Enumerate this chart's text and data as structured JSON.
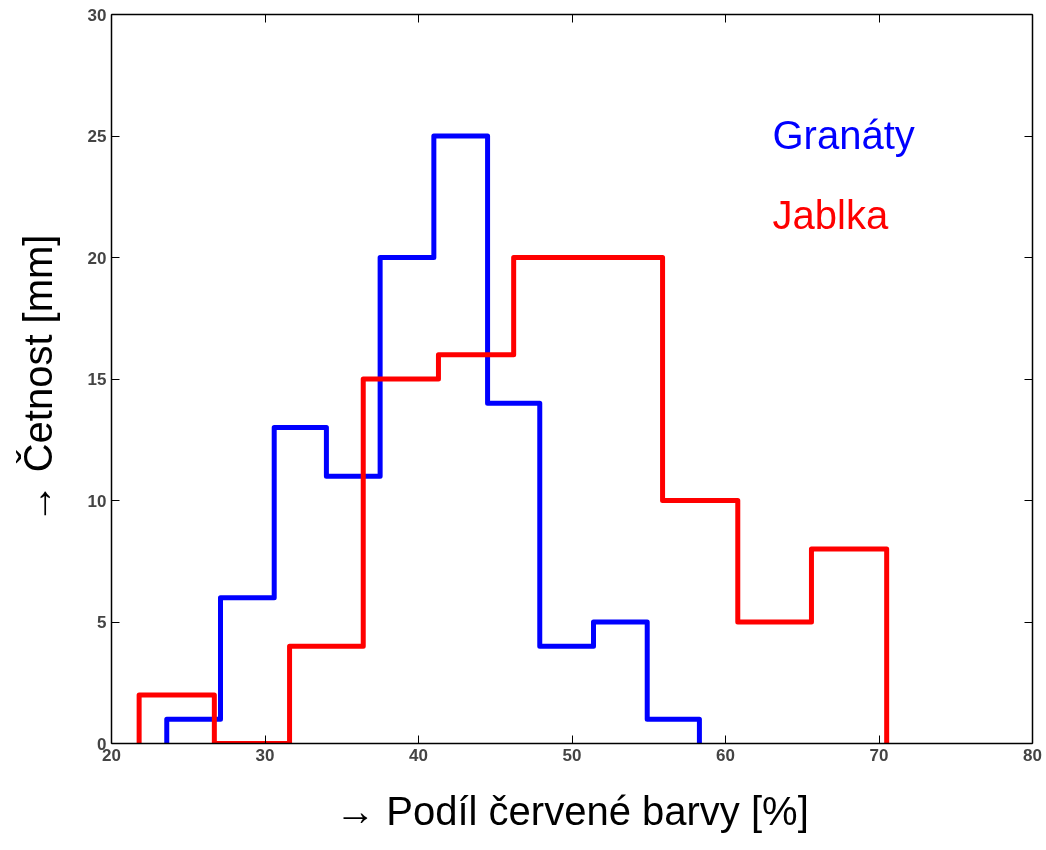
{
  "chart_data": {
    "type": "step",
    "xlabel": "→ Podíl červené barvy [%]",
    "ylabel": "→ Četnost [mm]",
    "series": [
      {
        "name": "Granáty",
        "color": "#0000ff",
        "x": [
          23.6,
          23.6,
          27.1,
          30.6,
          34.0,
          37.5,
          41.0,
          44.5,
          47.9,
          51.4,
          54.9,
          58.3
        ],
        "values": [
          0,
          1,
          6,
          13,
          11,
          20,
          25,
          14,
          4,
          5,
          1,
          0
        ]
      },
      {
        "name": "Jablka",
        "color": "#ff0000",
        "x": [
          21.8,
          21.8,
          26.7,
          31.6,
          36.4,
          41.3,
          46.2,
          51.0,
          55.9,
          60.8,
          65.6,
          70.5
        ],
        "values": [
          0,
          2,
          0,
          4,
          15,
          16,
          20,
          20,
          10,
          5,
          8,
          0
        ]
      }
    ],
    "xlim": [
      20,
      80
    ],
    "xticks": [
      20,
      30,
      40,
      50,
      60,
      70,
      80
    ],
    "ylim": [
      0,
      30
    ],
    "yticks": [
      0,
      5,
      10,
      15,
      20,
      25,
      30
    ],
    "grid": false
  }
}
